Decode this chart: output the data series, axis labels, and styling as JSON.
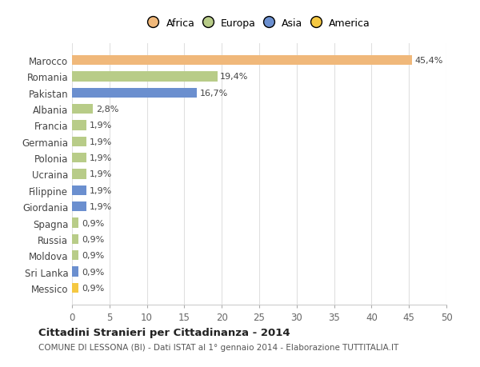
{
  "categories": [
    "Messico",
    "Sri Lanka",
    "Moldova",
    "Russia",
    "Spagna",
    "Giordania",
    "Filippine",
    "Ucraina",
    "Polonia",
    "Germania",
    "Francia",
    "Albania",
    "Pakistan",
    "Romania",
    "Marocco"
  ],
  "values": [
    0.9,
    0.9,
    0.9,
    0.9,
    0.9,
    1.9,
    1.9,
    1.9,
    1.9,
    1.9,
    1.9,
    2.8,
    16.7,
    19.4,
    45.4
  ],
  "labels": [
    "0,9%",
    "0,9%",
    "0,9%",
    "0,9%",
    "0,9%",
    "1,9%",
    "1,9%",
    "1,9%",
    "1,9%",
    "1,9%",
    "1,9%",
    "2,8%",
    "16,7%",
    "19,4%",
    "45,4%"
  ],
  "colors": [
    "#f5c842",
    "#6b8fcf",
    "#b8cc88",
    "#b8cc88",
    "#b8cc88",
    "#6b8fcf",
    "#6b8fcf",
    "#b8cc88",
    "#b8cc88",
    "#b8cc88",
    "#b8cc88",
    "#b8cc88",
    "#6b8fcf",
    "#b8cc88",
    "#f0b87a"
  ],
  "legend_labels": [
    "Africa",
    "Europa",
    "Asia",
    "America"
  ],
  "legend_colors": [
    "#f0b87a",
    "#b8cc88",
    "#6b8fcf",
    "#f5c842"
  ],
  "title": "Cittadini Stranieri per Cittadinanza - 2014",
  "subtitle": "COMUNE DI LESSONA (BI) - Dati ISTAT al 1° gennaio 2014 - Elaborazione TUTTITALIA.IT",
  "xlim": [
    0,
    50
  ],
  "xticks": [
    0,
    5,
    10,
    15,
    20,
    25,
    30,
    35,
    40,
    45,
    50
  ],
  "background_color": "#ffffff",
  "grid_color": "#e0e0e0"
}
